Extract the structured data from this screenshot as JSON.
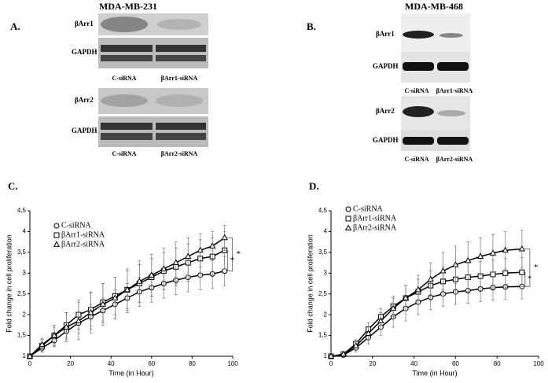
{
  "blots": [
    {
      "label": "A.",
      "title": "MDA-MB-231",
      "rows": [
        "βArr1",
        "GAPDH",
        "βArr2",
        "GAPDH"
      ],
      "lanes": [
        [
          "C-siRNA",
          "βArr1-siRNA"
        ],
        [
          "C-siRNA",
          "βArr2-siRNA"
        ]
      ]
    },
    {
      "label": "B.",
      "title": "MDA-MB-468",
      "rows": [
        "βArr1",
        "GAPDH",
        "βArr2",
        "GAPDH"
      ],
      "lanes": [
        [
          "C-siRNA",
          "βArr1-siRNA"
        ],
        [
          "C-siRNA",
          "βArr2-siRNA"
        ]
      ]
    }
  ],
  "chart_data": [
    {
      "type": "line",
      "panel": "C.",
      "x_label": "Time (in Hour)",
      "y_label": "Fold change in cell proliferation",
      "xlim": [
        0,
        100
      ],
      "xticks": [
        0,
        20,
        40,
        60,
        80,
        100
      ],
      "ylim": [
        1,
        4.5
      ],
      "yticks": [
        1,
        {
          "value": 1.5,
          "label": "1,5"
        },
        2,
        {
          "value": 2.5,
          "label": "2,5"
        },
        3,
        {
          "value": 3.5,
          "label": "3,5"
        },
        4,
        {
          "value": 4.5,
          "label": "4,5"
        }
      ],
      "x": [
        0,
        6,
        12,
        18,
        24,
        30,
        36,
        42,
        48,
        54,
        60,
        66,
        72,
        78,
        84,
        90,
        96
      ],
      "series": [
        {
          "name": "C-siRNA",
          "marker": "circle",
          "color": "#000",
          "values": [
            1,
            1.2,
            1.38,
            1.6,
            1.8,
            1.95,
            2.1,
            2.25,
            2.4,
            2.55,
            2.65,
            2.75,
            2.83,
            2.9,
            2.95,
            2.98,
            3.05
          ],
          "errors": [
            0,
            0.1,
            0.15,
            0.2,
            0.25,
            0.3,
            0.3,
            0.35,
            0.35,
            0.35,
            0.35,
            0.35,
            0.35,
            0.35,
            0.35,
            0.35,
            0.35
          ]
        },
        {
          "name": "βArr1-siRNA",
          "marker": "square",
          "color": "#000",
          "values": [
            1,
            1.25,
            1.5,
            1.75,
            2.0,
            2.12,
            2.3,
            2.45,
            2.6,
            2.75,
            2.9,
            3.05,
            3.15,
            3.25,
            3.35,
            3.4,
            3.55
          ],
          "errors": [
            0,
            0.15,
            0.2,
            0.3,
            0.35,
            0.4,
            0.45,
            0.45,
            0.45,
            0.45,
            0.45,
            0.45,
            0.45,
            0.45,
            0.45,
            0.45,
            0.45
          ]
        },
        {
          "name": "βArr2-siRNA",
          "marker": "triangle",
          "color": "#000",
          "values": [
            1,
            1.28,
            1.5,
            1.7,
            1.85,
            2.05,
            2.25,
            2.4,
            2.6,
            2.8,
            2.95,
            3.1,
            3.25,
            3.4,
            3.55,
            3.65,
            3.85
          ],
          "errors": [
            0,
            0.15,
            0.25,
            0.35,
            0.45,
            0.5,
            0.5,
            0.5,
            0.5,
            0.5,
            0.5,
            0.5,
            0.5,
            0.45,
            0.4,
            0.35,
            0.3
          ]
        }
      ],
      "annotations": [
        "*",
        "*"
      ]
    },
    {
      "type": "line",
      "panel": "D.",
      "x_label": "Time (in Hour)",
      "y_label": "Fold change in cell proliferation",
      "xlim": [
        0,
        100
      ],
      "xticks": [
        0,
        20,
        40,
        60,
        80,
        100
      ],
      "ylim": [
        1,
        4.5
      ],
      "yticks": [
        1,
        {
          "value": 1.5,
          "label": "1,5"
        },
        2,
        {
          "value": 2.5,
          "label": "2,5"
        },
        3,
        {
          "value": 3.5,
          "label": "3,5"
        },
        4,
        {
          "value": 4.5,
          "label": "4,5"
        }
      ],
      "x": [
        0,
        6,
        12,
        18,
        24,
        30,
        36,
        42,
        48,
        54,
        60,
        66,
        72,
        78,
        84,
        92
      ],
      "series": [
        {
          "name": "C-siRNA",
          "marker": "circle",
          "color": "#000",
          "values": [
            1,
            1.03,
            1.2,
            1.45,
            1.7,
            1.95,
            2.15,
            2.3,
            2.42,
            2.5,
            2.55,
            2.58,
            2.62,
            2.65,
            2.67,
            2.68
          ],
          "errors": [
            0,
            0.05,
            0.1,
            0.15,
            0.2,
            0.25,
            0.3,
            0.3,
            0.3,
            0.3,
            0.3,
            0.3,
            0.3,
            0.3,
            0.3,
            0.3
          ]
        },
        {
          "name": "βArr1-siRNA",
          "marker": "square",
          "color": "#000",
          "values": [
            1,
            1.05,
            1.3,
            1.65,
            1.95,
            2.2,
            2.4,
            2.55,
            2.7,
            2.8,
            2.85,
            2.9,
            2.93,
            2.97,
            3.0,
            3.02
          ],
          "errors": [
            0,
            0.05,
            0.1,
            0.15,
            0.2,
            0.25,
            0.3,
            0.3,
            0.35,
            0.35,
            0.35,
            0.35,
            0.35,
            0.35,
            0.35,
            0.35
          ]
        },
        {
          "name": "βArr2-siRNA",
          "marker": "triangle",
          "color": "#000",
          "values": [
            1,
            1.05,
            1.25,
            1.55,
            1.85,
            2.15,
            2.4,
            2.6,
            2.85,
            3.05,
            3.2,
            3.3,
            3.4,
            3.48,
            3.55,
            3.58
          ],
          "errors": [
            0,
            0.05,
            0.1,
            0.15,
            0.2,
            0.25,
            0.3,
            0.35,
            0.4,
            0.45,
            0.45,
            0.45,
            0.45,
            0.45,
            0.45,
            0.45
          ]
        }
      ],
      "annotations": [
        "*",
        "*"
      ]
    }
  ]
}
